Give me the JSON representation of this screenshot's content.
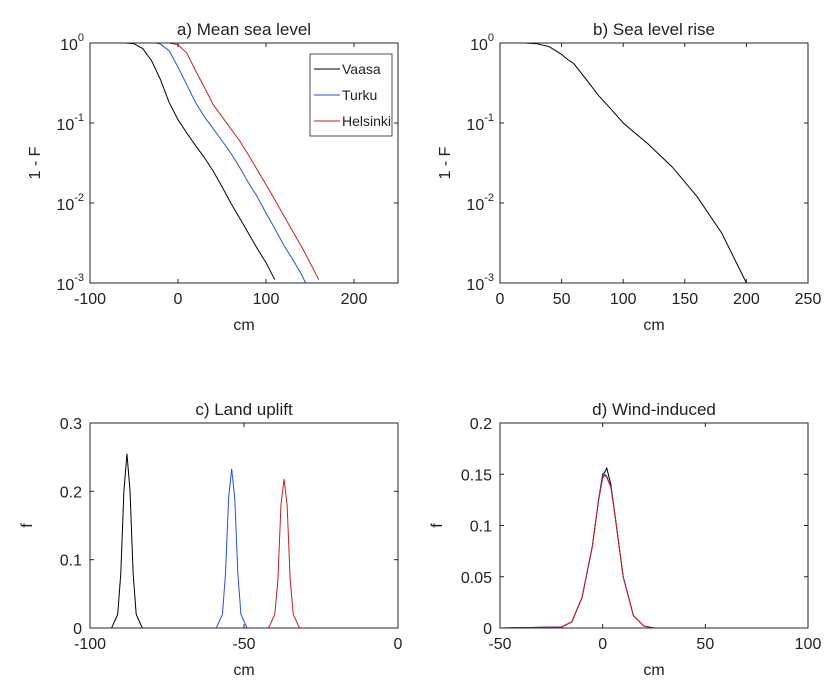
{
  "chart_data": [
    {
      "type": "line",
      "title": "a) Mean sea level",
      "xlabel": "cm",
      "ylabel": "1 - F",
      "log_y": true,
      "legend": "upper right",
      "xlim": [
        -100,
        250
      ],
      "xticks": [
        -100,
        0,
        100,
        200
      ],
      "ylim": [
        0.001,
        1
      ],
      "yticks": [
        {
          "value": 0.001,
          "label": "10",
          "exponent": "-3"
        },
        {
          "value": 0.01,
          "label": "10",
          "exponent": "-2"
        },
        {
          "value": 0.1,
          "label": "10",
          "exponent": "-1"
        },
        {
          "value": 1,
          "label": "10",
          "exponent": "0"
        }
      ],
      "series": [
        {
          "name": "Vaasa",
          "color": "#000000",
          "x": [
            -100,
            -60,
            -50,
            -40,
            -30,
            -20,
            -10,
            0,
            10,
            20,
            30,
            40,
            50,
            60,
            70,
            80,
            90,
            100,
            110
          ],
          "values": [
            1,
            1,
            0.98,
            0.85,
            0.6,
            0.35,
            0.18,
            0.11,
            0.075,
            0.052,
            0.037,
            0.025,
            0.016,
            0.01,
            0.0065,
            0.0042,
            0.0027,
            0.0018,
            0.0011
          ]
        },
        {
          "name": "Turku",
          "color": "#2b4fd6",
          "x": [
            -100,
            -25,
            -20,
            -10,
            0,
            10,
            20,
            30,
            40,
            50,
            60,
            70,
            80,
            90,
            100,
            110,
            120,
            130,
            140,
            145
          ],
          "values": [
            1,
            1,
            0.97,
            0.8,
            0.5,
            0.3,
            0.18,
            0.12,
            0.085,
            0.06,
            0.042,
            0.028,
            0.018,
            0.012,
            0.0075,
            0.0048,
            0.003,
            0.002,
            0.0013,
            0.001
          ]
        },
        {
          "name": "Helsinki",
          "color": "#c81e1e",
          "x": [
            -100,
            -10,
            0,
            10,
            20,
            30,
            40,
            50,
            60,
            70,
            80,
            90,
            100,
            110,
            120,
            130,
            140,
            150,
            160
          ],
          "values": [
            1,
            1,
            0.95,
            0.75,
            0.45,
            0.28,
            0.17,
            0.12,
            0.085,
            0.06,
            0.04,
            0.026,
            0.017,
            0.011,
            0.007,
            0.0045,
            0.0029,
            0.0018,
            0.0011
          ]
        }
      ]
    },
    {
      "type": "line",
      "title": "b) Sea level rise",
      "xlabel": "cm",
      "ylabel": "1 - F",
      "log_y": true,
      "xlim": [
        0,
        250
      ],
      "xticks": [
        0,
        50,
        100,
        150,
        200,
        250
      ],
      "ylim": [
        0.001,
        1
      ],
      "yticks": [
        {
          "value": 0.001,
          "label": "10",
          "exponent": "-3"
        },
        {
          "value": 0.01,
          "label": "10",
          "exponent": "-2"
        },
        {
          "value": 0.1,
          "label": "10",
          "exponent": "-1"
        },
        {
          "value": 1,
          "label": "10",
          "exponent": "0"
        }
      ],
      "series": [
        {
          "color": "#000000",
          "x": [
            0,
            20,
            30,
            40,
            50,
            55,
            60,
            70,
            80,
            90,
            100,
            120,
            140,
            160,
            180,
            200
          ],
          "values": [
            1,
            1,
            0.98,
            0.9,
            0.72,
            0.62,
            0.55,
            0.35,
            0.22,
            0.15,
            0.1,
            0.055,
            0.028,
            0.012,
            0.0042,
            0.001
          ]
        }
      ]
    },
    {
      "type": "line",
      "title": "c) Land uplift",
      "xlabel": "cm",
      "ylabel": "f",
      "xlim": [
        -100,
        0
      ],
      "xticks": [
        -100,
        -50,
        0
      ],
      "ylim": [
        0,
        0.3
      ],
      "yticks": [
        0,
        0.1,
        0.2,
        0.3
      ],
      "series": [
        {
          "color": "#000000",
          "x": [
            -100,
            -93,
            -91,
            -90,
            -89,
            -88,
            -87,
            -86,
            -85,
            -83,
            0
          ],
          "values": [
            0,
            0,
            0.02,
            0.08,
            0.2,
            0.255,
            0.2,
            0.08,
            0.02,
            0,
            0
          ]
        },
        {
          "color": "#2b4fd6",
          "x": [
            -100,
            -59,
            -57,
            -56,
            -55,
            -54,
            -53,
            -52,
            -51,
            -49,
            0
          ],
          "values": [
            0,
            0,
            0.02,
            0.08,
            0.19,
            0.233,
            0.19,
            0.08,
            0.02,
            0,
            0
          ]
        },
        {
          "color": "#c81e1e",
          "x": [
            -100,
            -42,
            -40,
            -39,
            -38,
            -37,
            -36,
            -35,
            -34,
            -32,
            0
          ],
          "values": [
            0,
            0,
            0.02,
            0.07,
            0.18,
            0.218,
            0.18,
            0.07,
            0.02,
            0,
            0
          ]
        }
      ]
    },
    {
      "type": "line",
      "title": "d) Wind-induced",
      "xlabel": "cm",
      "ylabel": "f",
      "xlim": [
        -50,
        100
      ],
      "xticks": [
        -50,
        0,
        50,
        100
      ],
      "ylim": [
        0,
        0.2
      ],
      "yticks": [
        0,
        0.05,
        0.1,
        0.15,
        0.2
      ],
      "series": [
        {
          "color": "#000000",
          "x": [
            -50,
            -20,
            -15,
            -10,
            -5,
            -2,
            0,
            1,
            2,
            4,
            6,
            10,
            15,
            20,
            25,
            100
          ],
          "values": [
            0,
            0.001,
            0.006,
            0.03,
            0.08,
            0.125,
            0.15,
            0.152,
            0.156,
            0.14,
            0.11,
            0.05,
            0.012,
            0.002,
            0,
            0
          ]
        },
        {
          "color": "#2b4fd6",
          "x": [
            -50,
            -20,
            -15,
            -10,
            -5,
            -2,
            0,
            1,
            2,
            4,
            6,
            10,
            15,
            20,
            25,
            100
          ],
          "values": [
            0,
            0.001,
            0.006,
            0.03,
            0.08,
            0.125,
            0.148,
            0.15,
            0.148,
            0.138,
            0.11,
            0.05,
            0.012,
            0.002,
            0,
            0
          ]
        },
        {
          "color": "#c81e1e",
          "x": [
            -50,
            -20,
            -15,
            -10,
            -5,
            -2,
            0,
            1,
            2,
            4,
            6,
            10,
            15,
            20,
            25,
            100
          ],
          "values": [
            0,
            0.001,
            0.006,
            0.03,
            0.08,
            0.124,
            0.146,
            0.149,
            0.147,
            0.137,
            0.11,
            0.05,
            0.012,
            0.002,
            0,
            0
          ]
        }
      ]
    }
  ]
}
